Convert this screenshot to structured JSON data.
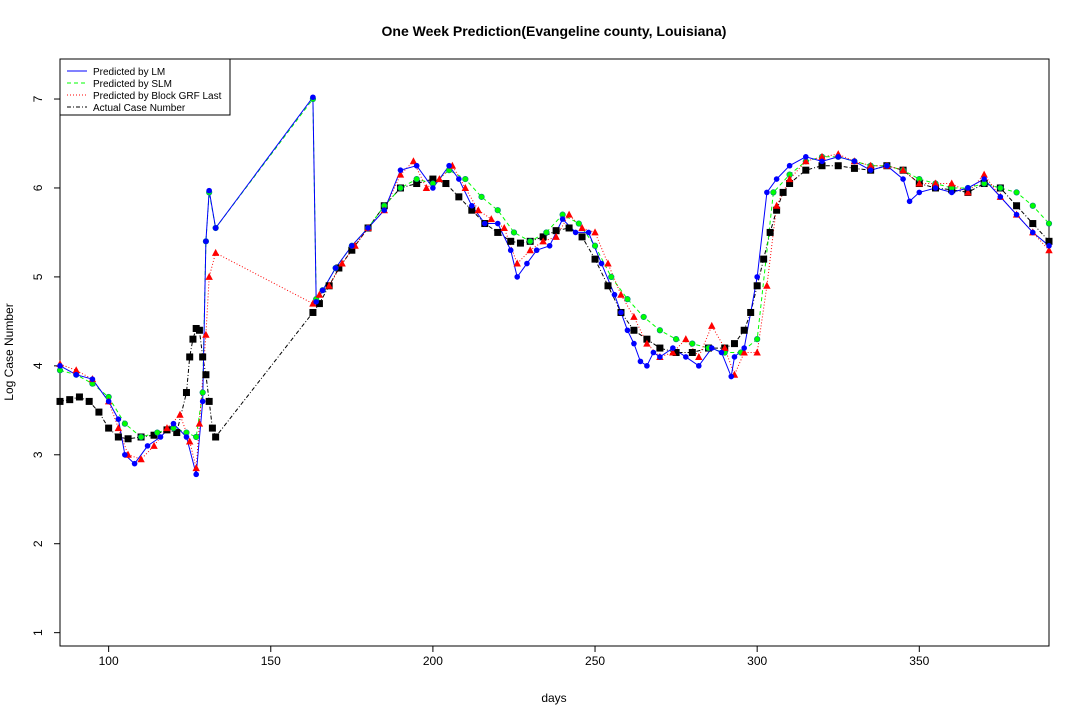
{
  "chart_data": {
    "type": "line",
    "title": "One Week Prediction(Evangeline county, Louisiana)",
    "xlabel": "days",
    "ylabel": "Log Case Number",
    "xlim": [
      85,
      390
    ],
    "ylim": [
      0.85,
      7.45
    ],
    "xticks": [
      100,
      150,
      200,
      250,
      300,
      350
    ],
    "yticks": [
      1,
      2,
      3,
      4,
      5,
      6,
      7
    ],
    "grid": false,
    "legend_position": "top-left",
    "series": [
      {
        "name": "Predicted by LM",
        "color": "#0000ff",
        "dash": "solid",
        "marker": "circle",
        "x": [
          85,
          90,
          95,
          100,
          103,
          105,
          108,
          112,
          116,
          120,
          124,
          127,
          129,
          130,
          131,
          133,
          163,
          164,
          166,
          170,
          175,
          180,
          185,
          190,
          195,
          200,
          205,
          208,
          212,
          216,
          220,
          224,
          226,
          229,
          232,
          236,
          240,
          244,
          248,
          252,
          256,
          258,
          260,
          262,
          264,
          266,
          268,
          270,
          274,
          278,
          282,
          286,
          289,
          292,
          293,
          296,
          300,
          303,
          306,
          310,
          315,
          320,
          325,
          330,
          335,
          340,
          345,
          347,
          350,
          355,
          360,
          365,
          370,
          375,
          380,
          385,
          390
        ],
        "y": [
          4.0,
          3.9,
          3.85,
          3.6,
          3.4,
          3.0,
          2.9,
          3.1,
          3.2,
          3.35,
          3.2,
          2.78,
          3.6,
          5.4,
          5.97,
          5.55,
          7.02,
          4.72,
          4.85,
          5.1,
          5.35,
          5.55,
          5.75,
          6.2,
          6.25,
          6.0,
          6.25,
          6.1,
          5.8,
          5.6,
          5.6,
          5.3,
          5.0,
          5.15,
          5.3,
          5.35,
          5.65,
          5.5,
          5.5,
          5.15,
          4.8,
          4.6,
          4.4,
          4.25,
          4.05,
          4.0,
          4.15,
          4.1,
          4.2,
          4.1,
          4.0,
          4.2,
          4.15,
          3.88,
          4.1,
          4.2,
          5.0,
          5.95,
          6.1,
          6.25,
          6.35,
          6.3,
          6.35,
          6.3,
          6.2,
          6.25,
          6.1,
          5.85,
          5.95,
          6.0,
          5.95,
          6.0,
          6.1,
          5.9,
          5.7,
          5.5,
          5.35
        ]
      },
      {
        "name": "Predicted by SLM",
        "color": "#00ff00",
        "dash": "dashed",
        "marker": "circle",
        "x": [
          85,
          90,
          95,
          100,
          105,
          110,
          115,
          120,
          124,
          127,
          129,
          130,
          131,
          133,
          163,
          164,
          166,
          170,
          175,
          180,
          185,
          190,
          195,
          200,
          205,
          210,
          215,
          220,
          225,
          230,
          235,
          240,
          245,
          250,
          255,
          260,
          265,
          270,
          275,
          280,
          285,
          290,
          295,
          300,
          305,
          310,
          315,
          320,
          325,
          330,
          335,
          340,
          345,
          350,
          355,
          360,
          365,
          370,
          375,
          380,
          385,
          390
        ],
        "y": [
          3.95,
          3.9,
          3.8,
          3.65,
          3.35,
          3.2,
          3.25,
          3.3,
          3.25,
          3.2,
          3.7,
          5.4,
          5.95,
          5.55,
          7.0,
          4.75,
          4.85,
          5.1,
          5.35,
          5.55,
          5.8,
          6.0,
          6.1,
          6.05,
          6.2,
          6.1,
          5.9,
          5.75,
          5.5,
          5.4,
          5.5,
          5.7,
          5.6,
          5.35,
          5.0,
          4.75,
          4.55,
          4.4,
          4.3,
          4.25,
          4.2,
          4.15,
          4.15,
          4.3,
          5.95,
          6.15,
          6.3,
          6.35,
          6.35,
          6.3,
          6.25,
          6.25,
          6.2,
          6.1,
          6.05,
          6.0,
          6.0,
          6.05,
          6.0,
          5.95,
          5.8,
          5.6
        ]
      },
      {
        "name": "Predicted by Block GRF Last",
        "color": "#ff0000",
        "dash": "dotted",
        "marker": "triangle",
        "x": [
          85,
          90,
          95,
          100,
          103,
          106,
          110,
          114,
          118,
          122,
          125,
          127,
          128,
          130,
          131,
          133,
          163,
          165,
          168,
          172,
          176,
          180,
          185,
          190,
          194,
          198,
          202,
          206,
          210,
          214,
          218,
          222,
          226,
          230,
          234,
          238,
          242,
          246,
          250,
          254,
          258,
          262,
          266,
          270,
          274,
          278,
          282,
          286,
          290,
          293,
          296,
          300,
          303,
          306,
          310,
          315,
          320,
          325,
          330,
          335,
          340,
          345,
          350,
          355,
          360,
          365,
          370,
          375,
          380,
          385,
          390
        ],
        "y": [
          4.02,
          3.95,
          3.85,
          3.6,
          3.3,
          3.0,
          2.95,
          3.1,
          3.3,
          3.45,
          3.15,
          2.85,
          3.35,
          4.35,
          5.0,
          5.27,
          4.7,
          4.8,
          4.9,
          5.15,
          5.35,
          5.55,
          5.75,
          6.15,
          6.3,
          6.0,
          6.1,
          6.25,
          6.0,
          5.75,
          5.65,
          5.55,
          5.15,
          5.3,
          5.4,
          5.45,
          5.7,
          5.55,
          5.5,
          5.15,
          4.8,
          4.55,
          4.25,
          4.1,
          4.15,
          4.3,
          4.1,
          4.45,
          4.2,
          3.9,
          4.15,
          4.15,
          4.9,
          5.8,
          6.1,
          6.3,
          6.35,
          6.38,
          6.3,
          6.25,
          6.25,
          6.2,
          6.05,
          6.05,
          6.05,
          5.95,
          6.15,
          5.9,
          5.7,
          5.5,
          5.3
        ]
      },
      {
        "name": "Actual Case Number",
        "color": "#000000",
        "dash": "dotdash",
        "marker": "square",
        "x": [
          85,
          88,
          91,
          94,
          97,
          100,
          103,
          106,
          110,
          114,
          118,
          121,
          124,
          125,
          126,
          127,
          128,
          129,
          130,
          131,
          132,
          133,
          163,
          165,
          168,
          171,
          175,
          180,
          185,
          190,
          195,
          200,
          204,
          208,
          212,
          216,
          220,
          224,
          227,
          230,
          234,
          238,
          242,
          246,
          250,
          254,
          258,
          262,
          266,
          270,
          275,
          280,
          285,
          290,
          293,
          296,
          298,
          300,
          302,
          304,
          306,
          308,
          310,
          315,
          320,
          325,
          330,
          335,
          340,
          345,
          350,
          355,
          360,
          365,
          370,
          375,
          380,
          385,
          390
        ],
        "y": [
          3.6,
          3.62,
          3.65,
          3.6,
          3.48,
          3.3,
          3.2,
          3.18,
          3.2,
          3.22,
          3.28,
          3.25,
          3.7,
          4.1,
          4.3,
          4.42,
          4.4,
          4.1,
          3.9,
          3.6,
          3.3,
          3.2,
          4.6,
          4.7,
          4.9,
          5.1,
          5.3,
          5.55,
          5.8,
          6.0,
          6.05,
          6.1,
          6.05,
          5.9,
          5.75,
          5.6,
          5.5,
          5.4,
          5.38,
          5.4,
          5.45,
          5.52,
          5.55,
          5.45,
          5.2,
          4.9,
          4.6,
          4.4,
          4.3,
          4.2,
          4.15,
          4.15,
          4.2,
          4.2,
          4.25,
          4.4,
          4.6,
          4.9,
          5.2,
          5.5,
          5.75,
          5.95,
          6.05,
          6.2,
          6.25,
          6.25,
          6.22,
          6.2,
          6.25,
          6.2,
          6.05,
          6.0,
          5.98,
          5.95,
          6.05,
          6.0,
          5.8,
          5.6,
          5.4
        ]
      }
    ]
  }
}
